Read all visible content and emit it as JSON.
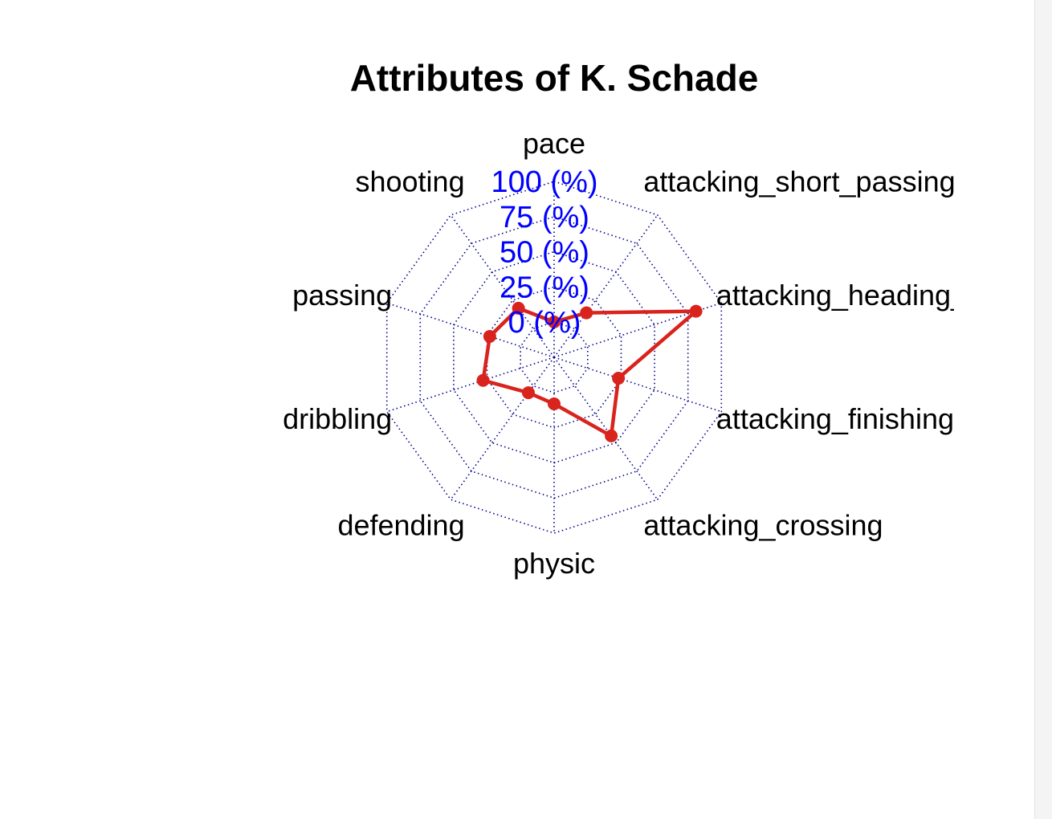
{
  "chart_data": {
    "type": "radar",
    "title": "Attributes of K. Schade",
    "axes": [
      "pace",
      "attacking_short_passing",
      "attacking_heading_accuracy",
      "attacking_finishing",
      "attacking_crossing",
      "physic",
      "defending",
      "dribbling",
      "passing",
      "shooting"
    ],
    "series": [
      {
        "values": [
          0,
          14,
          81,
          23,
          44,
          8,
          6,
          28,
          23,
          18
        ],
        "color": "#d9231d"
      }
    ],
    "range": [
      0,
      100
    ],
    "axis_tick_labels": [
      "0 (%)",
      "25 (%)",
      "50 (%)",
      "75 (%)",
      "100 (%)"
    ],
    "grid_color": "#00008b",
    "axis_label_color": "#0000ff",
    "grid": "dotted"
  }
}
